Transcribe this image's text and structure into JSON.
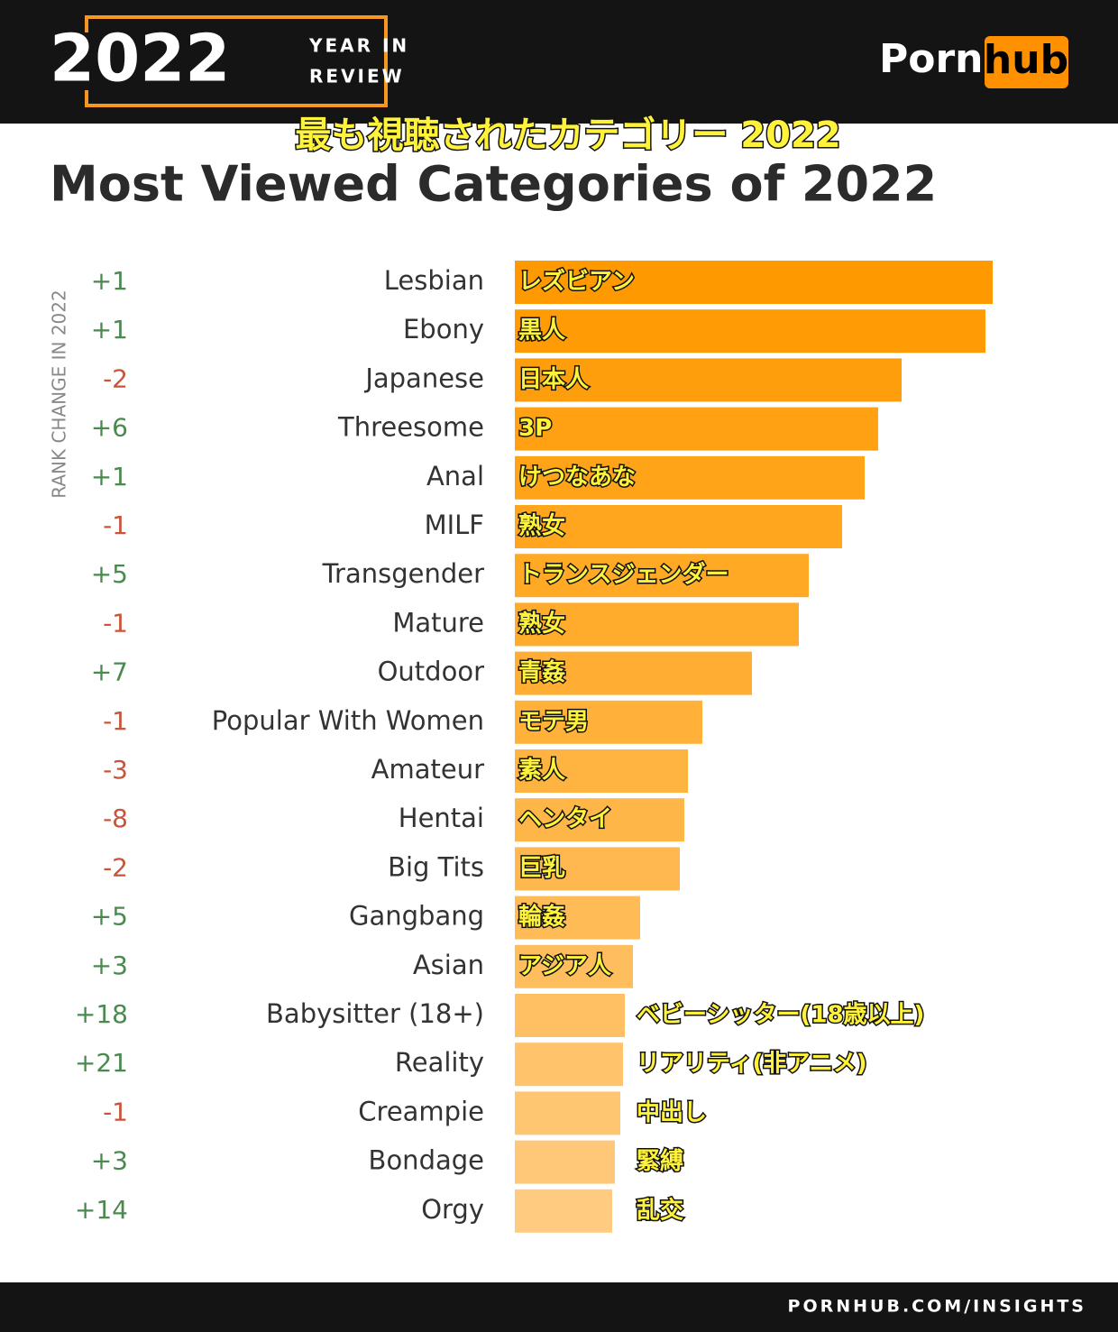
{
  "header": {
    "year": "2022",
    "year_in": "YEAR IN",
    "review": "REVIEW",
    "logo_left": "Porn",
    "logo_right": "hub"
  },
  "chart_data": {
    "type": "bar",
    "orientation": "horizontal",
    "title_ja": "最も視聴されたカテゴリー 2022",
    "title": "Most Viewed Categories of 2022",
    "rank_axis_label": "RANK CHANGE IN 2022",
    "categories": [
      "Lesbian",
      "Ebony",
      "Japanese",
      "Threesome",
      "Anal",
      "MILF",
      "Transgender",
      "Mature",
      "Outdoor",
      "Popular With Women",
      "Amateur",
      "Hentai",
      "Big Tits",
      "Gangbang",
      "Asian",
      "Babysitter (18+)",
      "Reality",
      "Creampie",
      "Bondage",
      "Orgy"
    ],
    "labels_ja": [
      "レズビアン",
      "黒人",
      "日本人",
      "3P",
      "けつなあな",
      "熟女",
      "トランスジェンダー",
      "熟女",
      "青姦",
      "モテ男",
      "素人",
      "ヘンタイ",
      "巨乳",
      "輪姦",
      "アジア人",
      "ベビーシッター(18歳以上)",
      "リアリティ(非アニメ)",
      "中出し",
      "緊縛",
      "乱交"
    ],
    "rank_change": [
      "+1",
      "+1",
      "-2",
      "+6",
      "+1",
      "-1",
      "+5",
      "-1",
      "+7",
      "-1",
      "-3",
      "-8",
      "-2",
      "+5",
      "+3",
      "+18",
      "+21",
      "-1",
      "+3",
      "+14"
    ],
    "values": [
      530,
      522,
      429,
      403,
      388,
      363,
      326,
      315,
      263,
      208,
      192,
      188,
      183,
      139,
      131,
      122,
      120,
      117,
      111,
      108
    ],
    "colors": [
      "#ff9900",
      "#ff9b05",
      "#ff9e0c",
      "#ffa112",
      "#ffa418",
      "#ffa61e",
      "#ffa925",
      "#ffab2c",
      "#ffae33",
      "#ffb13a",
      "#ffb341",
      "#ffb648",
      "#ffb84f",
      "#ffbb56",
      "#ffbe5d",
      "#ffc064",
      "#ffc36b",
      "#ffc672",
      "#ffc879",
      "#ffcb80"
    ],
    "positive_color": "#4a8a4f",
    "negative_color": "#c9543a",
    "xlim": [
      0,
      530
    ]
  },
  "footer": {
    "url": "PORNHUB.COM/INSIGHTS"
  }
}
